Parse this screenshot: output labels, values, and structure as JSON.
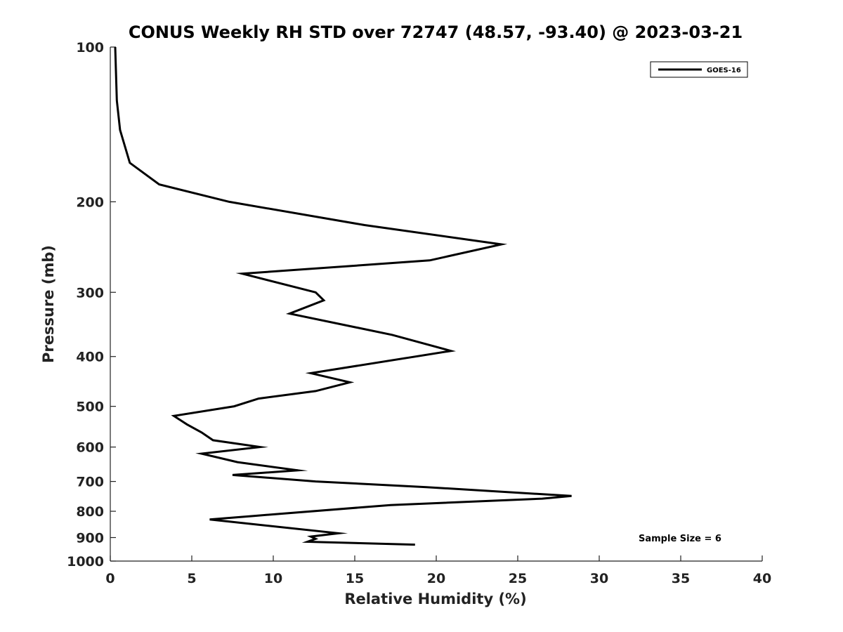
{
  "chart_data": {
    "type": "line",
    "title": "CONUS Weekly RH STD over 72747 (48.57, -93.40) @ 2023-03-21",
    "xlabel": "Relative Humidity (%)",
    "ylabel": "Pressure (mb)",
    "xlim": [
      0,
      40
    ],
    "ylim": [
      100,
      1000
    ],
    "yscale": "log",
    "y_reversed": true,
    "grid": false,
    "legend_position": "top-right",
    "x_ticks": [
      0,
      5,
      10,
      15,
      20,
      25,
      30,
      35,
      40
    ],
    "x_tick_labels": [
      "0",
      "5",
      "10",
      "15",
      "20",
      "25",
      "30",
      "35",
      "40"
    ],
    "y_ticks": [
      100,
      200,
      300,
      400,
      500,
      600,
      700,
      800,
      900,
      1000
    ],
    "y_tick_labels": [
      "100",
      "200",
      "300",
      "400",
      "500",
      "600",
      "700",
      "800",
      "900",
      "1000"
    ],
    "series": [
      {
        "name": "GOES-16",
        "color": "#000000",
        "x": [
          0.3,
          0.4,
          0.6,
          1.2,
          3.0,
          7.3,
          15.6,
          24.0,
          19.6,
          8.1,
          12.6,
          13.1,
          11.0,
          17.3,
          20.9,
          18.3,
          12.3,
          14.7,
          12.6,
          9.1,
          7.6,
          3.9,
          4.7,
          5.6,
          6.3,
          9.2,
          5.6,
          7.8,
          11.5,
          7.5,
          12.6,
          19.4,
          28.3,
          26.5,
          17.2,
          8.8,
          6.1,
          14.0,
          12.3,
          12.6,
          12.1,
          18.7
        ],
        "y": [
          100,
          127,
          145,
          168,
          185,
          200,
          222,
          242,
          260,
          276,
          300,
          311,
          330,
          363,
          390,
          402,
          431,
          449,
          467,
          483,
          500,
          522,
          542,
          562,
          582,
          600,
          618,
          642,
          666,
          680,
          700,
          718,
          747,
          756,
          778,
          817,
          830,
          883,
          896,
          905,
          917,
          929
        ]
      }
    ],
    "annotations": [
      {
        "text": "Sample Size = 6"
      }
    ]
  }
}
